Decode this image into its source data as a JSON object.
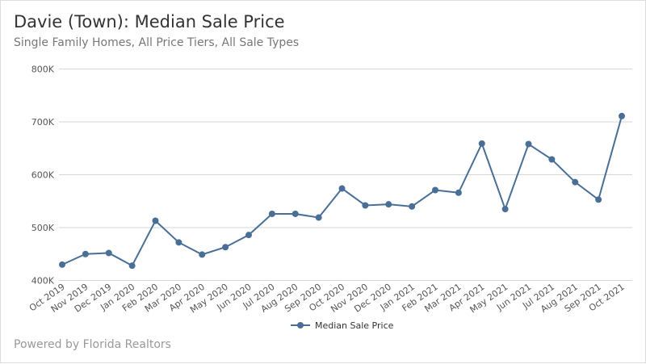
{
  "header": {
    "title": "Davie (Town): Median Sale Price",
    "subtitle": "Single Family Homes, All Price Tiers, All Sale Types"
  },
  "footer": {
    "text": "Powered by Florida Realtors"
  },
  "chart_data": {
    "type": "line",
    "title": "Davie (Town): Median Sale Price",
    "subtitle": "Single Family Homes, All Price Tiers, All Sale Types",
    "xlabel": "",
    "ylabel": "",
    "ylim": [
      400000,
      800000
    ],
    "yticks": [
      {
        "value": 400000,
        "label": "400K"
      },
      {
        "value": 500000,
        "label": "500K"
      },
      {
        "value": 600000,
        "label": "600K"
      },
      {
        "value": 700000,
        "label": "700K"
      },
      {
        "value": 800000,
        "label": "800K"
      }
    ],
    "grid": true,
    "legend": "bottom",
    "color": "#4a6f96",
    "categories": [
      "Oct 2019",
      "Nov 2019",
      "Dec 2019",
      "Jan 2020",
      "Feb 2020",
      "Mar 2020",
      "Apr 2020",
      "May 2020",
      "Jun 2020",
      "Jul 2020",
      "Aug 2020",
      "Sep 2020",
      "Oct 2020",
      "Nov 2020",
      "Dec 2020",
      "Jan 2021",
      "Feb 2021",
      "Mar 2021",
      "Apr 2021",
      "May 2021",
      "Jun 2021",
      "Jul 2021",
      "Aug 2021",
      "Sep 2021",
      "Oct 2021"
    ],
    "series": [
      {
        "name": "Median Sale Price",
        "values": [
          430000,
          450000,
          452000,
          428000,
          513000,
          472000,
          449000,
          463000,
          486000,
          526000,
          526000,
          519000,
          574000,
          542000,
          544000,
          540000,
          571000,
          566000,
          659000,
          535000,
          658000,
          629000,
          586000,
          553000,
          711000
        ]
      }
    ]
  }
}
